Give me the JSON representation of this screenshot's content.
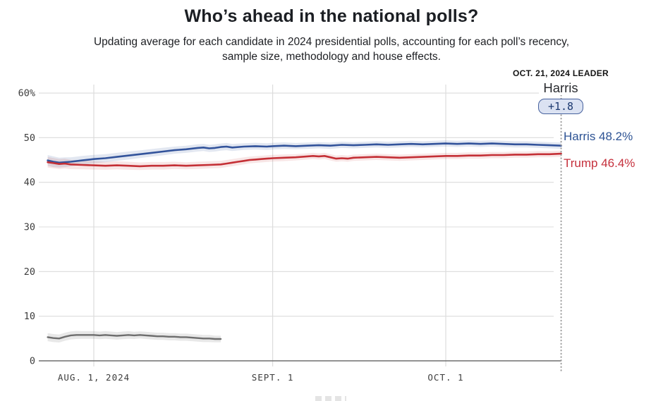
{
  "header": {
    "title": "Who’s ahead in the national polls?",
    "subtitle_line1": "Updating average for each candidate in 2024 presidential polls, accounting for each poll’s recency,",
    "subtitle_line2": "sample size, methodology and house effects."
  },
  "leader": {
    "date_label": "OCT. 21, 2024 LEADER",
    "name": "Harris",
    "margin_badge": "+1.8"
  },
  "colors": {
    "harris_line": "#32539b",
    "trump_line": "#c42f35",
    "gray_line": "#6e6e6e",
    "gridline": "#dcdcdc",
    "zero_line": "#6f6f6f",
    "dotted_marker": "#9b9b9b",
    "badge_bg": "#dbe2f2",
    "badge_border": "#46619e",
    "harris_label": "#2d5394",
    "trump_label": "#c5303c"
  },
  "chart_data": {
    "type": "line",
    "title": "Who’s ahead in the national polls?",
    "x_encoding": "t = day index; tick AUG. 1, 2024 at t=8, SEPT. 1 at t=39, OCT. 1 at t=69, right edge (OCT. 21) at t=89",
    "x_domain": [
      0,
      89
    ],
    "ylim": [
      0,
      62
    ],
    "grid": "horizontal gridlines at each y tick; vertical gridlines at month ticks; dotted vertical line at right edge",
    "legend_position": "labels at right end of lines",
    "y_ticks": [
      {
        "value": 60,
        "label": "60%"
      },
      {
        "value": 50,
        "label": "50"
      },
      {
        "value": 40,
        "label": "40"
      },
      {
        "value": 30,
        "label": "30"
      },
      {
        "value": 20,
        "label": "20"
      },
      {
        "value": 10,
        "label": "10"
      },
      {
        "value": 0,
        "label": "0"
      }
    ],
    "x_ticks": [
      {
        "t": 8,
        "label": "AUG. 1, 2024"
      },
      {
        "t": 39,
        "label": "SEPT. 1"
      },
      {
        "t": 69,
        "label": "OCT. 1"
      }
    ],
    "series": [
      {
        "key": "gray",
        "name": "",
        "color": "#6e6e6e",
        "band_color": "rgba(110,110,110,0.16)",
        "line_width": 2.4,
        "end_label": "",
        "points": [
          [
            0,
            5.3,
            0.9
          ],
          [
            1,
            5.1,
            0.9
          ],
          [
            2,
            5.0,
            0.9
          ],
          [
            3,
            5.4,
            0.9
          ],
          [
            4,
            5.7,
            0.9
          ],
          [
            5,
            5.8,
            0.9
          ],
          [
            6,
            5.8,
            0.85
          ],
          [
            8,
            5.8,
            0.85
          ],
          [
            9,
            5.7,
            0.85
          ],
          [
            10,
            5.8,
            0.85
          ],
          [
            11,
            5.7,
            0.85
          ],
          [
            12,
            5.6,
            0.85
          ],
          [
            13,
            5.7,
            0.85
          ],
          [
            14,
            5.8,
            0.85
          ],
          [
            15,
            5.7,
            0.8
          ],
          [
            16,
            5.8,
            0.8
          ],
          [
            17,
            5.7,
            0.8
          ],
          [
            18,
            5.6,
            0.8
          ],
          [
            19,
            5.5,
            0.8
          ],
          [
            20,
            5.5,
            0.8
          ],
          [
            21,
            5.4,
            0.8
          ],
          [
            22,
            5.4,
            0.8
          ],
          [
            23,
            5.3,
            0.8
          ],
          [
            24,
            5.3,
            0.8
          ],
          [
            25,
            5.2,
            0.8
          ],
          [
            26,
            5.1,
            0.8
          ],
          [
            27,
            5.0,
            0.8
          ],
          [
            28,
            5.0,
            0.8
          ],
          [
            29,
            4.9,
            0.75
          ],
          [
            30,
            4.9,
            0.75
          ]
        ]
      },
      {
        "key": "harris",
        "name": "Harris",
        "color": "#32539b",
        "band_color": "rgba(51,84,156,0.14)",
        "line_width": 2.6,
        "end_label": "Harris 48.2%",
        "end_value": 48.2,
        "points": [
          [
            0,
            44.9,
            1.2
          ],
          [
            1,
            44.6,
            1.2
          ],
          [
            2,
            44.4,
            1.1
          ],
          [
            3,
            44.5,
            1.1
          ],
          [
            4,
            44.6,
            1.0
          ],
          [
            6,
            44.9,
            1.0
          ],
          [
            8,
            45.2,
            0.95
          ],
          [
            10,
            45.4,
            0.9
          ],
          [
            12,
            45.7,
            0.9
          ],
          [
            14,
            46.0,
            0.9
          ],
          [
            16,
            46.3,
            0.85
          ],
          [
            18,
            46.6,
            0.85
          ],
          [
            20,
            46.9,
            0.85
          ],
          [
            22,
            47.2,
            0.8
          ],
          [
            24,
            47.4,
            0.8
          ],
          [
            26,
            47.7,
            0.8
          ],
          [
            27,
            47.8,
            0.8
          ],
          [
            28,
            47.6,
            0.8
          ],
          [
            29,
            47.7,
            0.8
          ],
          [
            30,
            47.9,
            0.8
          ],
          [
            31,
            48.0,
            0.8
          ],
          [
            32,
            47.8,
            0.8
          ],
          [
            34,
            48.0,
            0.75
          ],
          [
            36,
            48.1,
            0.75
          ],
          [
            38,
            48.0,
            0.75
          ],
          [
            39,
            48.1,
            0.75
          ],
          [
            41,
            48.2,
            0.75
          ],
          [
            43,
            48.1,
            0.7
          ],
          [
            45,
            48.2,
            0.7
          ],
          [
            47,
            48.3,
            0.7
          ],
          [
            49,
            48.2,
            0.7
          ],
          [
            51,
            48.4,
            0.7
          ],
          [
            53,
            48.3,
            0.7
          ],
          [
            55,
            48.4,
            0.7
          ],
          [
            57,
            48.5,
            0.7
          ],
          [
            59,
            48.4,
            0.7
          ],
          [
            61,
            48.5,
            0.7
          ],
          [
            63,
            48.6,
            0.7
          ],
          [
            65,
            48.5,
            0.7
          ],
          [
            67,
            48.6,
            0.7
          ],
          [
            69,
            48.7,
            0.7
          ],
          [
            71,
            48.6,
            0.7
          ],
          [
            73,
            48.7,
            0.7
          ],
          [
            75,
            48.6,
            0.7
          ],
          [
            77,
            48.7,
            0.7
          ],
          [
            79,
            48.6,
            0.7
          ],
          [
            81,
            48.5,
            0.7
          ],
          [
            83,
            48.5,
            0.7
          ],
          [
            85,
            48.4,
            0.7
          ],
          [
            87,
            48.3,
            0.7
          ],
          [
            89,
            48.2,
            0.7
          ]
        ]
      },
      {
        "key": "trump",
        "name": "Trump",
        "color": "#c42f35",
        "band_color": "rgba(196,47,53,0.12)",
        "line_width": 2.6,
        "end_label": "Trump 46.4%",
        "end_value": 46.4,
        "points": [
          [
            0,
            44.5,
            1.2
          ],
          [
            1,
            44.3,
            1.15
          ],
          [
            2,
            44.1,
            1.1
          ],
          [
            3,
            44.2,
            1.1
          ],
          [
            4,
            44.0,
            1.05
          ],
          [
            6,
            43.9,
            1.0
          ],
          [
            8,
            43.8,
            0.95
          ],
          [
            10,
            43.7,
            0.9
          ],
          [
            12,
            43.8,
            0.9
          ],
          [
            14,
            43.7,
            0.9
          ],
          [
            16,
            43.6,
            0.85
          ],
          [
            18,
            43.7,
            0.85
          ],
          [
            20,
            43.7,
            0.85
          ],
          [
            22,
            43.8,
            0.8
          ],
          [
            24,
            43.7,
            0.8
          ],
          [
            26,
            43.8,
            0.8
          ],
          [
            28,
            43.9,
            0.8
          ],
          [
            30,
            44.0,
            0.8
          ],
          [
            31,
            44.2,
            0.8
          ],
          [
            32,
            44.4,
            0.8
          ],
          [
            33,
            44.6,
            0.8
          ],
          [
            34,
            44.8,
            0.8
          ],
          [
            35,
            45.0,
            0.75
          ],
          [
            36,
            45.1,
            0.75
          ],
          [
            37,
            45.2,
            0.75
          ],
          [
            38,
            45.3,
            0.75
          ],
          [
            39,
            45.4,
            0.75
          ],
          [
            41,
            45.5,
            0.75
          ],
          [
            43,
            45.6,
            0.7
          ],
          [
            44,
            45.7,
            0.7
          ],
          [
            45,
            45.8,
            0.7
          ],
          [
            46,
            45.9,
            0.7
          ],
          [
            47,
            45.8,
            0.7
          ],
          [
            48,
            45.9,
            0.7
          ],
          [
            49,
            45.6,
            0.7
          ],
          [
            50,
            45.3,
            0.7
          ],
          [
            51,
            45.4,
            0.7
          ],
          [
            52,
            45.3,
            0.7
          ],
          [
            53,
            45.5,
            0.7
          ],
          [
            55,
            45.6,
            0.7
          ],
          [
            57,
            45.7,
            0.7
          ],
          [
            59,
            45.6,
            0.7
          ],
          [
            61,
            45.5,
            0.7
          ],
          [
            63,
            45.6,
            0.7
          ],
          [
            65,
            45.7,
            0.7
          ],
          [
            67,
            45.8,
            0.7
          ],
          [
            69,
            45.9,
            0.7
          ],
          [
            71,
            45.9,
            0.7
          ],
          [
            73,
            46.0,
            0.7
          ],
          [
            75,
            46.0,
            0.7
          ],
          [
            77,
            46.1,
            0.7
          ],
          [
            79,
            46.1,
            0.7
          ],
          [
            81,
            46.2,
            0.7
          ],
          [
            83,
            46.2,
            0.7
          ],
          [
            85,
            46.3,
            0.7
          ],
          [
            87,
            46.3,
            0.7
          ],
          [
            89,
            46.4,
            0.7
          ]
        ]
      }
    ]
  }
}
